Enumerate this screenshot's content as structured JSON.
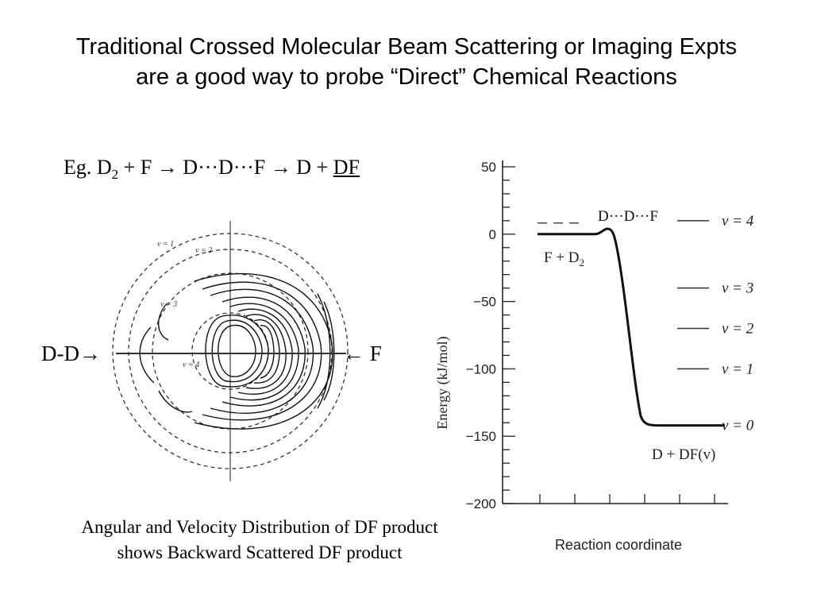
{
  "title": {
    "line1": "Traditional Crossed Molecular Beam Scattering or Imaging Expts",
    "line2": "are a good way to probe “Direct” Chemical Reactions"
  },
  "equation": {
    "prefix": "Eg. D",
    "sub": "2",
    "middle": " + F → D···D···F → D + ",
    "product": "DF"
  },
  "contour_plot": {
    "ring_labels": [
      "v = 1",
      "v = 2",
      "v = 3",
      "v = 4"
    ],
    "left_beam_label": "D-D→",
    "right_beam_label": "← F"
  },
  "caption": {
    "line1": "Angular and Velocity Distribution of DF product",
    "line2": "shows Backward Scattered DF product"
  },
  "energy_diagram": {
    "ylabel": "Energy (kJ/mol)",
    "xlabel": "Reaction coordinate",
    "y_ticks": [
      "50",
      "0",
      "−50",
      "−100",
      "−150",
      "−200"
    ],
    "y_tick_values": [
      50,
      0,
      -50,
      -100,
      -150,
      -200
    ],
    "ylim": [
      -200,
      50
    ],
    "transition_state_label": "D···D···F",
    "reactant_label": "F + D",
    "reactant_sub": "2",
    "product_label": "D + DF(v)",
    "reactant_energy": 0,
    "barrier_energy": 4,
    "product_energy": -142,
    "vibrational_levels": [
      {
        "label": "v = 4",
        "energy": 10
      },
      {
        "label": "v = 3",
        "energy": -40
      },
      {
        "label": "v = 2",
        "energy": -70
      },
      {
        "label": "v = 1",
        "energy": -100
      },
      {
        "label": "v = 0",
        "energy": -142
      }
    ]
  }
}
